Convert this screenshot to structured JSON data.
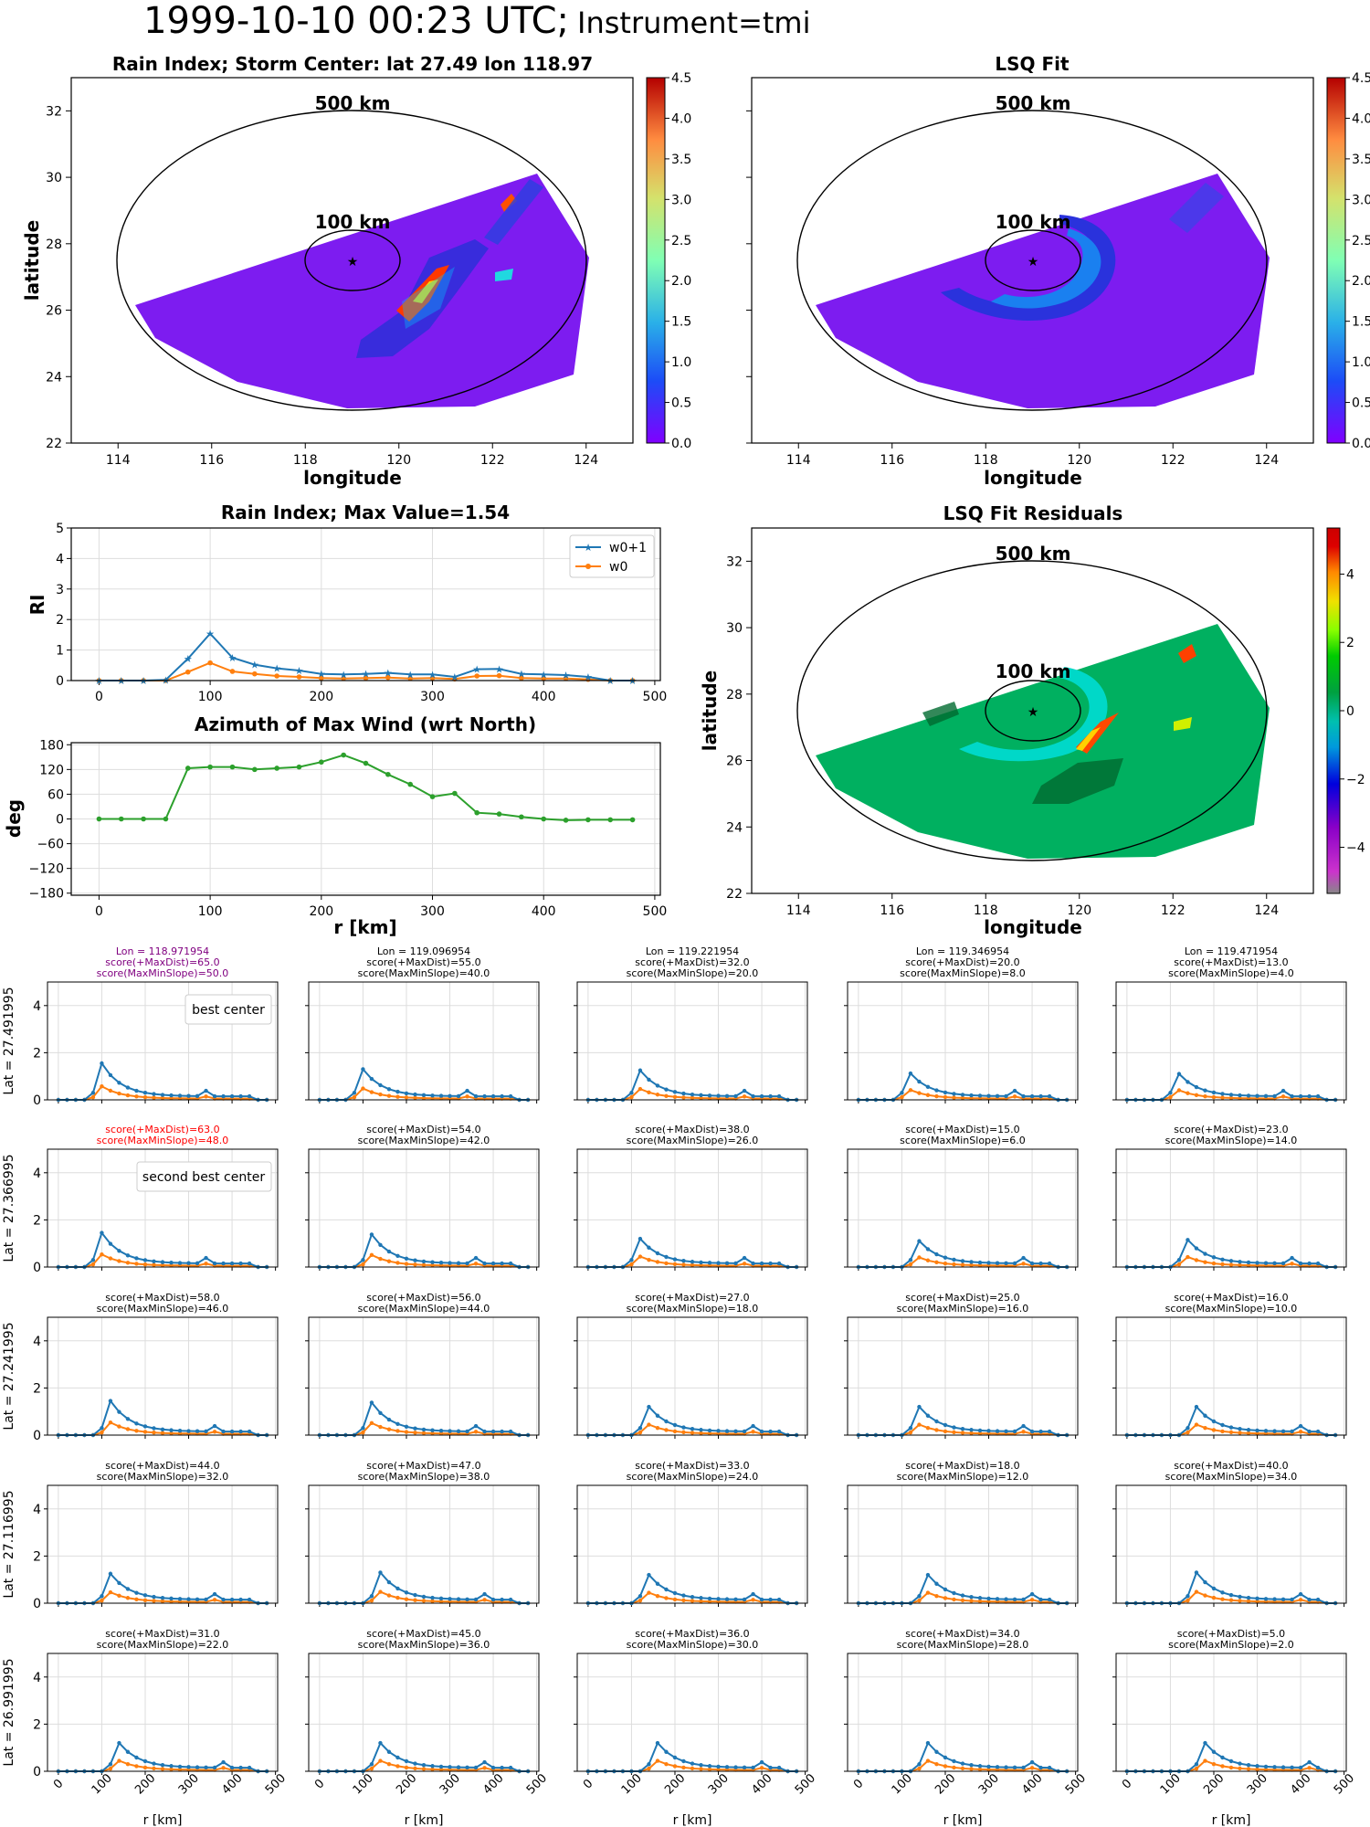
{
  "figure": {
    "title_main": "1999-10-10 00:23 UTC;",
    "title_instrument": "Instrument=tmi"
  },
  "colors": {
    "w0p1": "#1f77b4",
    "w0": "#ff7f0e",
    "azimuth": "#2ca02c",
    "best_title": "#800080",
    "second_title": "#ff0000",
    "map_fill_rain": "#7d1cf0",
    "map_fill_resid": "#00b060"
  },
  "chart_data": [
    {
      "id": "rain_index_map",
      "type": "heatmap",
      "title": "Rain Index; Storm Center: lat 27.49 lon 118.97",
      "xlabel": "longitude",
      "ylabel": "latitude",
      "xlim": [
        113,
        125
      ],
      "ylim": [
        22,
        33
      ],
      "xticks": [
        114,
        116,
        118,
        120,
        122,
        124
      ],
      "yticks": [
        22,
        24,
        26,
        28,
        30,
        32
      ],
      "circle_labels": [
        "500 km",
        "100 km"
      ],
      "colorbar": {
        "min": 0.0,
        "max": 4.5,
        "ticks": [
          "0.0",
          "0.5",
          "1.0",
          "1.5",
          "2.0",
          "2.5",
          "3.0",
          "3.5",
          "4.0",
          "4.5"
        ],
        "colormap": "rainbow"
      },
      "center": {
        "lat": 27.49,
        "lon": 118.97
      }
    },
    {
      "id": "lsq_fit_map",
      "type": "heatmap",
      "title": "LSQ Fit",
      "xlabel": "longitude",
      "xlim": [
        113,
        125
      ],
      "ylim": [
        22,
        33
      ],
      "xticks": [
        114,
        116,
        118,
        120,
        122,
        124
      ],
      "circle_labels": [
        "500 km",
        "100 km"
      ],
      "colorbar": {
        "min": 0.0,
        "max": 4.5,
        "ticks": [
          "0.0",
          "0.5",
          "1.0",
          "1.5",
          "2.0",
          "2.5",
          "3.0",
          "3.5",
          "4.0",
          "4.5"
        ],
        "colormap": "rainbow"
      }
    },
    {
      "id": "rain_index_profile",
      "type": "line",
      "title": "Rain Index; Max Value=1.54",
      "ylabel": "RI",
      "xlim": [
        -25,
        505
      ],
      "ylim": [
        0,
        5
      ],
      "xticks": [
        0,
        100,
        200,
        300,
        400,
        500
      ],
      "yticks": [
        0,
        1,
        2,
        3,
        4,
        5
      ],
      "legend": "top-right",
      "x": [
        0,
        20,
        40,
        60,
        80,
        100,
        120,
        140,
        160,
        180,
        200,
        220,
        240,
        260,
        280,
        300,
        320,
        340,
        360,
        380,
        400,
        420,
        440,
        460,
        480
      ],
      "series": [
        {
          "name": "w0+1",
          "values": [
            0,
            0,
            0,
            0.02,
            0.72,
            1.54,
            0.75,
            0.52,
            0.4,
            0.33,
            0.22,
            0.2,
            0.22,
            0.25,
            0.2,
            0.2,
            0.12,
            0.37,
            0.38,
            0.22,
            0.2,
            0.18,
            0.12,
            0,
            0
          ]
        },
        {
          "name": "w0",
          "values": [
            0,
            0,
            0,
            0,
            0.28,
            0.58,
            0.3,
            0.22,
            0.15,
            0.12,
            0.08,
            0.07,
            0.08,
            0.1,
            0.07,
            0.08,
            0.05,
            0.15,
            0.16,
            0.08,
            0.07,
            0.07,
            0.04,
            0,
            0
          ]
        }
      ]
    },
    {
      "id": "azimuth_profile",
      "type": "line",
      "title": "Azimuth of Max Wind (wrt North)",
      "xlabel": "r [km]",
      "ylabel": "deg",
      "xlim": [
        -25,
        505
      ],
      "ylim": [
        -185,
        185
      ],
      "xticks": [
        0,
        100,
        200,
        300,
        400,
        500
      ],
      "yticks": [
        180,
        120,
        60,
        0,
        -60,
        -120,
        -180
      ],
      "x": [
        0,
        20,
        40,
        60,
        80,
        100,
        120,
        140,
        160,
        180,
        200,
        220,
        240,
        260,
        280,
        300,
        320,
        340,
        360,
        380,
        400,
        420,
        440,
        460,
        480
      ],
      "values": [
        0,
        0,
        0,
        0,
        123,
        126,
        126,
        120,
        123,
        126,
        138,
        155,
        135,
        108,
        84,
        54,
        62,
        15,
        12,
        5,
        0,
        -3,
        -2,
        -2,
        -2
      ]
    },
    {
      "id": "lsq_residuals_map",
      "type": "heatmap",
      "title": "LSQ Fit Residuals",
      "xlabel": "longitude",
      "ylabel": "latitude",
      "xlim": [
        113,
        125
      ],
      "ylim": [
        22,
        33
      ],
      "xticks": [
        114,
        116,
        118,
        120,
        122,
        124
      ],
      "yticks": [
        22,
        24,
        26,
        28,
        30,
        32
      ],
      "circle_labels": [
        "500 km",
        "100 km"
      ],
      "colorbar": {
        "min": -5,
        "max": 5,
        "ticks": [
          "4",
          "2",
          "0",
          "−2",
          "−4"
        ],
        "colormap": "nipy_spectral"
      }
    },
    {
      "id": "score_grid",
      "type": "line",
      "xlabel": "r [km]",
      "xticks": [
        0,
        100,
        200,
        300,
        400,
        500
      ],
      "yticks": [
        0,
        2,
        4
      ],
      "ylim": [
        0,
        5
      ],
      "row_labels": [
        "Lat = 27.491995",
        "Lat = 27.366995",
        "Lat = 27.241995",
        "Lat = 27.116995",
        "Lat = 26.991995"
      ],
      "col_lons": [
        "Lon = 118.971954",
        "Lon = 119.096954",
        "Lon = 119.221954",
        "Lon = 119.346954",
        "Lon = 119.471954"
      ],
      "best_center_label": "best center",
      "second_center_label": "second best center",
      "titles": [
        [
          [
            "Lon = 118.971954",
            "score(+MaxDist)=65.0",
            "score(MaxMinSlope)=50.0"
          ],
          [
            "Lon = 119.096954",
            "score(+MaxDist)=55.0",
            "score(MaxMinSlope)=40.0"
          ],
          [
            "Lon = 119.221954",
            "score(+MaxDist)=32.0",
            "score(MaxMinSlope)=20.0"
          ],
          [
            "Lon = 119.346954",
            "score(+MaxDist)=20.0",
            "score(MaxMinSlope)=8.0"
          ],
          [
            "Lon = 119.471954",
            "score(+MaxDist)=13.0",
            "score(MaxMinSlope)=4.0"
          ]
        ],
        [
          [
            "score(+MaxDist)=63.0",
            "score(MaxMinSlope)=48.0"
          ],
          [
            "score(+MaxDist)=54.0",
            "score(MaxMinSlope)=42.0"
          ],
          [
            "score(+MaxDist)=38.0",
            "score(MaxMinSlope)=26.0"
          ],
          [
            "score(+MaxDist)=15.0",
            "score(MaxMinSlope)=6.0"
          ],
          [
            "score(+MaxDist)=23.0",
            "score(MaxMinSlope)=14.0"
          ]
        ],
        [
          [
            "score(+MaxDist)=58.0",
            "score(MaxMinSlope)=46.0"
          ],
          [
            "score(+MaxDist)=56.0",
            "score(MaxMinSlope)=44.0"
          ],
          [
            "score(+MaxDist)=27.0",
            "score(MaxMinSlope)=18.0"
          ],
          [
            "score(+MaxDist)=25.0",
            "score(MaxMinSlope)=16.0"
          ],
          [
            "score(+MaxDist)=16.0",
            "score(MaxMinSlope)=10.0"
          ]
        ],
        [
          [
            "score(+MaxDist)=44.0",
            "score(MaxMinSlope)=32.0"
          ],
          [
            "score(+MaxDist)=47.0",
            "score(MaxMinSlope)=38.0"
          ],
          [
            "score(+MaxDist)=33.0",
            "score(MaxMinSlope)=24.0"
          ],
          [
            "score(+MaxDist)=18.0",
            "score(MaxMinSlope)=12.0"
          ],
          [
            "score(+MaxDist)=40.0",
            "score(MaxMinSlope)=34.0"
          ]
        ],
        [
          [
            "score(+MaxDist)=31.0",
            "score(MaxMinSlope)=22.0"
          ],
          [
            "score(+MaxDist)=45.0",
            "score(MaxMinSlope)=36.0"
          ],
          [
            "score(+MaxDist)=36.0",
            "score(MaxMinSlope)=30.0"
          ],
          [
            "score(+MaxDist)=34.0",
            "score(MaxMinSlope)=28.0"
          ],
          [
            "score(+MaxDist)=5.0",
            "score(MaxMinSlope)=2.0"
          ]
        ]
      ],
      "peaks": [
        [
          [
            100,
            1.55
          ],
          [
            100,
            1.3
          ],
          [
            120,
            1.25
          ],
          [
            120,
            1.12
          ],
          [
            120,
            1.1
          ]
        ],
        [
          [
            100,
            1.45
          ],
          [
            120,
            1.38
          ],
          [
            120,
            1.2
          ],
          [
            140,
            1.1
          ],
          [
            140,
            1.15
          ]
        ],
        [
          [
            120,
            1.45
          ],
          [
            120,
            1.38
          ],
          [
            140,
            1.2
          ],
          [
            140,
            1.2
          ],
          [
            160,
            1.2
          ]
        ],
        [
          [
            120,
            1.25
          ],
          [
            140,
            1.3
          ],
          [
            140,
            1.2
          ],
          [
            160,
            1.2
          ],
          [
            160,
            1.3
          ]
        ],
        [
          [
            140,
            1.2
          ],
          [
            140,
            1.2
          ],
          [
            160,
            1.2
          ],
          [
            160,
            1.2
          ],
          [
            180,
            1.2
          ]
        ]
      ]
    }
  ]
}
